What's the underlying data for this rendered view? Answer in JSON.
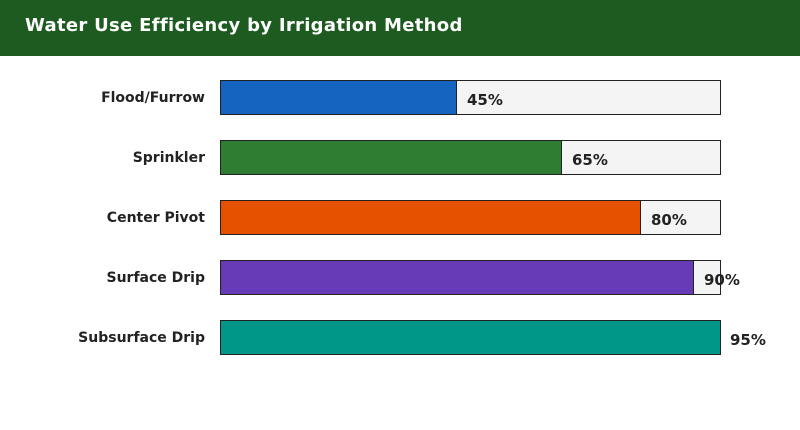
{
  "header": {
    "title": "Water Use Efficiency by Irrigation Method",
    "background": "#1e5b21"
  },
  "chart_data": {
    "type": "bar",
    "orientation": "horizontal",
    "title": "Water Use Efficiency by Irrigation Method",
    "categories": [
      "Flood/Furrow",
      "Sprinkler",
      "Center Pivot",
      "Surface Drip",
      "Subsurface Drip"
    ],
    "values": [
      45,
      65,
      80,
      90,
      95
    ],
    "value_labels": [
      "45%",
      "65%",
      "80%",
      "90%",
      "95%"
    ],
    "colors": [
      "#1565c0",
      "#2e7d32",
      "#e65100",
      "#673ab7",
      "#009688"
    ],
    "track_color": "#f4f4f4",
    "xlim": [
      0,
      95
    ],
    "unit": "%",
    "xlabel": "",
    "ylabel": "",
    "grid": false,
    "legend": "none"
  }
}
